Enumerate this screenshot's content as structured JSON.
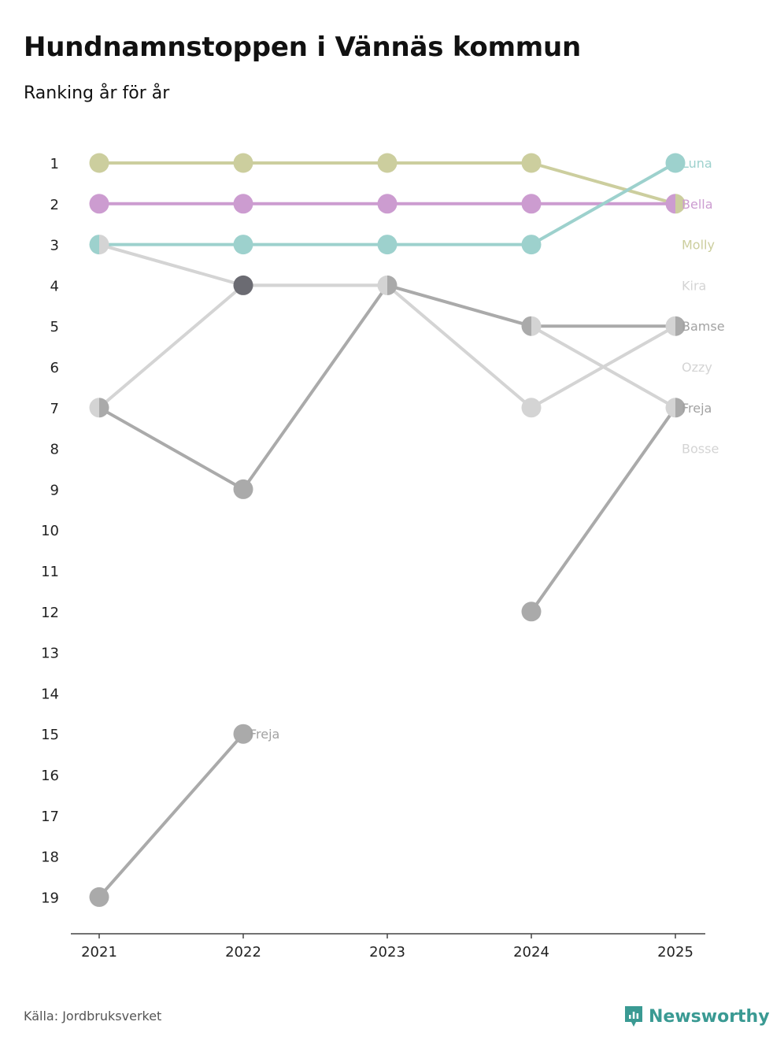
{
  "title": "Hundnamnstoppen i Vännäs kommun",
  "subtitle": "Ranking år för år",
  "source": "Källa: Jordbruksverket",
  "brand": "Newsworthy",
  "colors": {
    "luna": "#9dd1cd",
    "bella": "#cc9cd0",
    "molly": "#ccce9e",
    "light_gray": "#d4d4d4",
    "mid_gray": "#aaaaaa",
    "dark_gray": "#6b6b72",
    "brand": "#3a9a93"
  },
  "chart_data": {
    "type": "line",
    "title": "Hundnamnstoppen i Vännäs kommun",
    "subtitle": "Ranking år för år",
    "x": [
      "2021",
      "2022",
      "2023",
      "2024",
      "2025"
    ],
    "y_ticks": [
      "1",
      "2",
      "3",
      "4",
      "5",
      "6",
      "7",
      "8",
      "9",
      "10",
      "11",
      "12",
      "13",
      "14",
      "15",
      "16",
      "17",
      "18",
      "19"
    ],
    "ylim": [
      1,
      19
    ],
    "y_inverted": true,
    "series": [
      {
        "name": "Luna",
        "color": "#9dd1cd",
        "values": [
          3,
          3,
          3,
          3,
          1
        ],
        "label_rank": 1
      },
      {
        "name": "Bella",
        "color": "#cc9cd0",
        "values": [
          2,
          2,
          2,
          2,
          2
        ],
        "label_rank": 2
      },
      {
        "name": "Molly",
        "color": "#ccce9e",
        "values": [
          1,
          1,
          1,
          1,
          2
        ],
        "label_rank": 3
      },
      {
        "name": "Kira",
        "color": "#d4d4d4",
        "values": [
          7,
          4,
          4,
          7,
          5
        ],
        "label_rank": 4
      },
      {
        "name": "Bamse",
        "color": "#aaaaaa",
        "values": [
          null,
          null,
          4,
          5,
          5
        ],
        "label_rank": 5
      },
      {
        "name": "Ozzy",
        "color": "#d4d4d4",
        "values": [
          3,
          4,
          4,
          5,
          7
        ],
        "label_rank": 6
      },
      {
        "name": "Freja",
        "color": "#aaaaaa",
        "values": [
          null,
          null,
          null,
          12,
          7
        ],
        "label_rank": 7
      },
      {
        "name": "Bosse",
        "color": "#aaaaaa",
        "values": [
          7,
          9,
          4,
          null,
          null
        ],
        "label_rank": 8
      },
      {
        "name": "Freja (tidigare)",
        "color": "#aaaaaa",
        "values": [
          19,
          15,
          null,
          null,
          null
        ],
        "label": "Freja"
      }
    ],
    "label_colors": {
      "Luna": "#9dd1cd",
      "Bella": "#cc9cd0",
      "Molly": "#ccce9e",
      "Kira": "#d4d4d4",
      "Bamse": "#a2a2a2",
      "Ozzy": "#d4d4d4",
      "Freja": "#a2a2a2",
      "Bosse": "#d4d4d4"
    }
  }
}
